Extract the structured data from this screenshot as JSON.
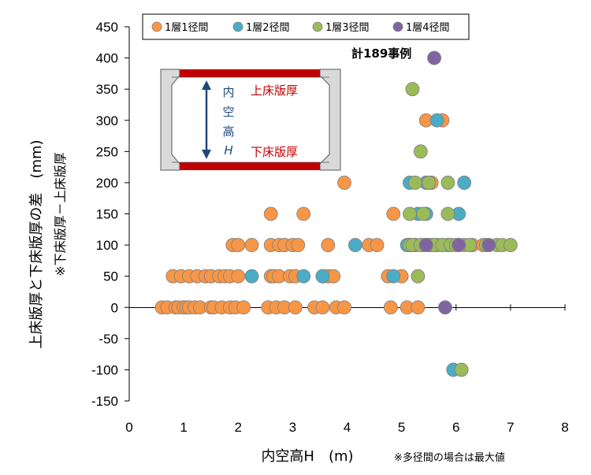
{
  "chart_data": {
    "type": "scatter",
    "title": "",
    "xlabel": "内空高H　(m)",
    "ylabel": "上床版厚と下床版厚の差　(mm)",
    "ylabel_sub": "※下床版厚－上床版厚",
    "xlim": [
      0,
      8
    ],
    "ylim": [
      -150,
      450
    ],
    "xticks": [
      0,
      1,
      2,
      3,
      4,
      5,
      6,
      7,
      8
    ],
    "yticks": [
      -150,
      -100,
      -50,
      0,
      50,
      100,
      150,
      200,
      250,
      300,
      350,
      400,
      450
    ],
    "legend_position": "top",
    "annotation_count": "計189事例",
    "footnote": "※多径間の場合は最大値",
    "inset": {
      "top_label": "上床版厚",
      "bottom_label": "下床版厚",
      "height_label_chars": [
        "内",
        "空",
        "高"
      ],
      "height_label_var": "H"
    },
    "colors": {
      "s1": "#F79646",
      "s2": "#4BACC6",
      "s3": "#9BBB59",
      "s4": "#8064A2",
      "slab": "#C00000",
      "arrow": "#1F497D",
      "wall": "#D9D9D9"
    },
    "series": [
      {
        "name": "1層1径間",
        "color": "#F79646",
        "points": [
          [
            0.6,
            0
          ],
          [
            0.7,
            0
          ],
          [
            0.85,
            0
          ],
          [
            0.9,
            0
          ],
          [
            1.0,
            0
          ],
          [
            1.05,
            0
          ],
          [
            1.1,
            0
          ],
          [
            1.2,
            0
          ],
          [
            1.3,
            0
          ],
          [
            1.5,
            0
          ],
          [
            1.55,
            0
          ],
          [
            1.7,
            0
          ],
          [
            1.85,
            0
          ],
          [
            1.95,
            0
          ],
          [
            2.1,
            0
          ],
          [
            2.55,
            0
          ],
          [
            2.7,
            0
          ],
          [
            2.85,
            0
          ],
          [
            3.05,
            0
          ],
          [
            3.4,
            0
          ],
          [
            3.55,
            0
          ],
          [
            3.8,
            0
          ],
          [
            3.95,
            0
          ],
          [
            4.8,
            0
          ],
          [
            5.1,
            0
          ],
          [
            5.3,
            0
          ],
          [
            0.8,
            50
          ],
          [
            0.95,
            50
          ],
          [
            1.1,
            50
          ],
          [
            1.25,
            50
          ],
          [
            1.4,
            50
          ],
          [
            1.5,
            50
          ],
          [
            1.65,
            50
          ],
          [
            1.75,
            50
          ],
          [
            1.85,
            50
          ],
          [
            2.0,
            50
          ],
          [
            2.6,
            50
          ],
          [
            2.65,
            50
          ],
          [
            2.75,
            50
          ],
          [
            2.95,
            50
          ],
          [
            3.05,
            50
          ],
          [
            3.55,
            50
          ],
          [
            3.65,
            50
          ],
          [
            3.75,
            50
          ],
          [
            4.75,
            50
          ],
          [
            5.0,
            50
          ],
          [
            1.9,
            100
          ],
          [
            2.0,
            100
          ],
          [
            2.25,
            100
          ],
          [
            2.6,
            100
          ],
          [
            2.75,
            100
          ],
          [
            2.85,
            100
          ],
          [
            3.0,
            100
          ],
          [
            3.1,
            100
          ],
          [
            3.65,
            100
          ],
          [
            4.4,
            100
          ],
          [
            4.55,
            100
          ],
          [
            5.15,
            100
          ],
          [
            5.4,
            100
          ],
          [
            5.55,
            100
          ],
          [
            5.9,
            100
          ],
          [
            6.3,
            100
          ],
          [
            6.5,
            100
          ],
          [
            2.6,
            150
          ],
          [
            3.2,
            150
          ],
          [
            4.85,
            150
          ],
          [
            3.95,
            200
          ],
          [
            5.55,
            200
          ],
          [
            5.45,
            300
          ],
          [
            5.75,
            300
          ]
        ]
      },
      {
        "name": "1層2径間",
        "color": "#4BACC6",
        "points": [
          [
            2.25,
            50
          ],
          [
            3.2,
            50
          ],
          [
            3.55,
            50
          ],
          [
            4.85,
            50
          ],
          [
            4.15,
            100
          ],
          [
            5.1,
            100
          ],
          [
            5.25,
            100
          ],
          [
            5.45,
            100
          ],
          [
            5.65,
            100
          ],
          [
            5.75,
            100
          ],
          [
            5.85,
            100
          ],
          [
            6.05,
            100
          ],
          [
            5.3,
            150
          ],
          [
            5.45,
            150
          ],
          [
            6.05,
            150
          ],
          [
            5.15,
            200
          ],
          [
            5.45,
            200
          ],
          [
            5.5,
            200
          ],
          [
            6.15,
            200
          ],
          [
            5.65,
            300
          ],
          [
            5.95,
            -100
          ]
        ]
      },
      {
        "name": "1層3径間",
        "color": "#9BBB59",
        "points": [
          [
            5.3,
            50
          ],
          [
            5.15,
            100
          ],
          [
            5.2,
            100
          ],
          [
            5.35,
            100
          ],
          [
            5.5,
            100
          ],
          [
            5.6,
            100
          ],
          [
            5.75,
            100
          ],
          [
            5.9,
            100
          ],
          [
            6.0,
            100
          ],
          [
            6.15,
            100
          ],
          [
            6.25,
            100
          ],
          [
            6.55,
            100
          ],
          [
            6.75,
            100
          ],
          [
            6.85,
            100
          ],
          [
            7.0,
            100
          ],
          [
            5.15,
            150
          ],
          [
            5.4,
            150
          ],
          [
            5.85,
            150
          ],
          [
            5.25,
            200
          ],
          [
            5.5,
            200
          ],
          [
            5.85,
            200
          ],
          [
            5.35,
            250
          ],
          [
            5.2,
            350
          ],
          [
            6.1,
            -100
          ]
        ]
      },
      {
        "name": "1層4径間",
        "color": "#8064A2",
        "points": [
          [
            5.45,
            100
          ],
          [
            6.05,
            100
          ],
          [
            6.6,
            100
          ],
          [
            5.8,
            0
          ],
          [
            5.6,
            400
          ]
        ]
      }
    ]
  }
}
